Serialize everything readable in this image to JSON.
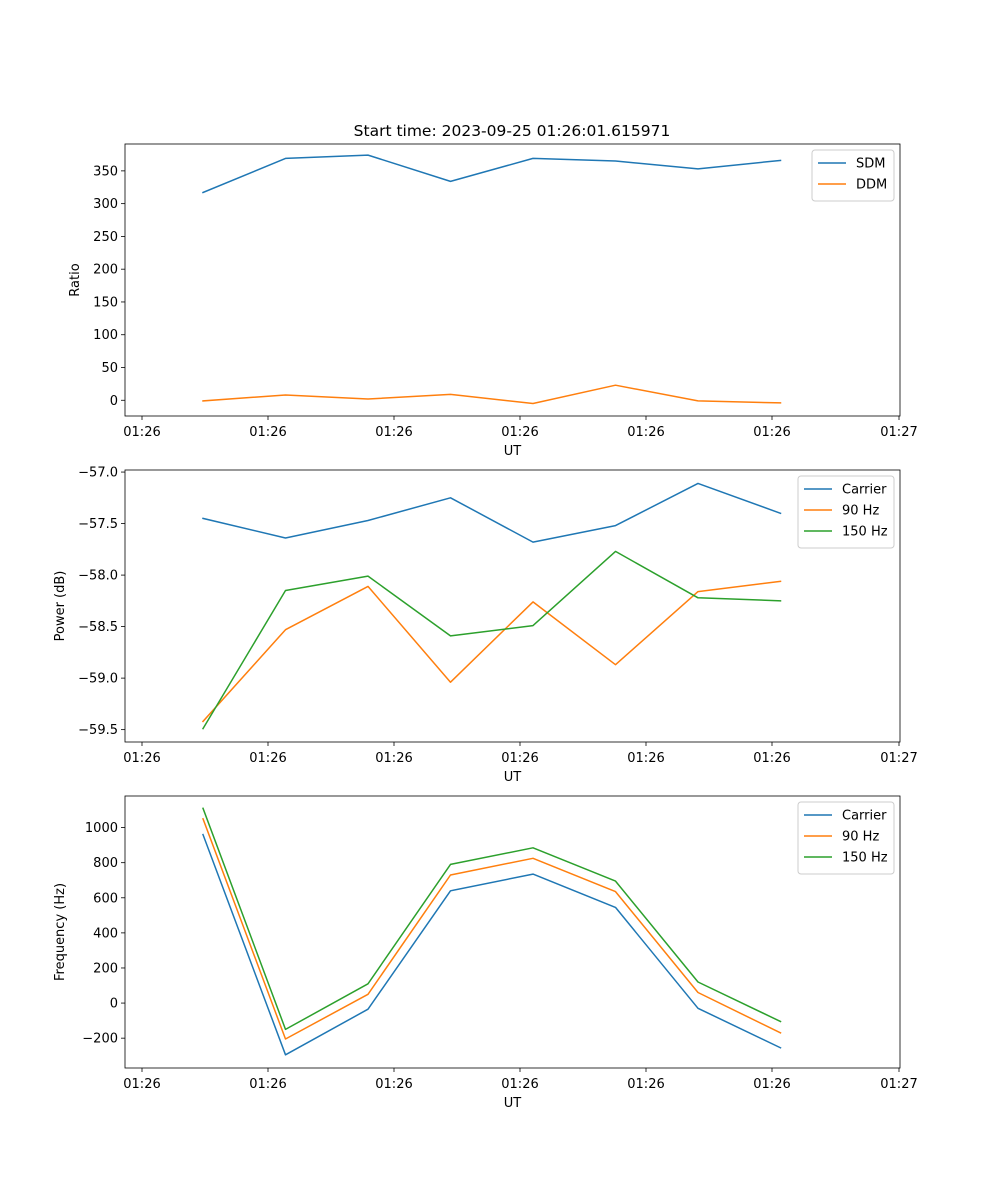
{
  "figure_title": "Start time: 2023-09-25 01:26:01.615971",
  "colors": {
    "blue": "#1f77b4",
    "orange": "#ff7f0e",
    "green": "#2ca02c"
  },
  "chart_data": [
    {
      "type": "line",
      "xlabel": "UT",
      "ylabel": "Ratio",
      "x_tick_labels": [
        "01:26",
        "01:26",
        "01:26",
        "01:26",
        "01:26",
        "01:26",
        "01:26"
      ],
      "ylim": [
        -24,
        391
      ],
      "yticks": [
        0,
        50,
        100,
        150,
        200,
        250,
        300,
        350
      ],
      "legend_position": "top-right",
      "series": [
        {
          "name": "SDM",
          "color": "blue",
          "values": [
            317,
            369,
            374,
            334,
            369,
            365,
            353,
            366
          ]
        },
        {
          "name": "DDM",
          "color": "orange",
          "values": [
            -1,
            8,
            2,
            9,
            -5,
            23,
            -1,
            -4
          ]
        }
      ]
    },
    {
      "type": "line",
      "xlabel": "UT",
      "ylabel": "Power (dB)",
      "x_tick_labels": [
        "01:26",
        "01:26",
        "01:26",
        "01:26",
        "01:26",
        "01:26",
        "01:26"
      ],
      "ylim": [
        -59.62,
        -56.98
      ],
      "yticks": [
        -59.5,
        -59.0,
        -58.5,
        -58.0,
        -57.5,
        -57.0
      ],
      "legend_position": "top-right",
      "series": [
        {
          "name": "Carrier",
          "color": "blue",
          "values": [
            -57.45,
            -57.64,
            -57.47,
            -57.25,
            -57.68,
            -57.52,
            -57.11,
            -57.4
          ]
        },
        {
          "name": "90 Hz",
          "color": "orange",
          "values": [
            -59.42,
            -58.53,
            -58.11,
            -59.04,
            -58.26,
            -58.87,
            -58.16,
            -58.06
          ]
        },
        {
          "name": "150 Hz",
          "color": "green",
          "values": [
            -59.49,
            -58.15,
            -58.01,
            -58.59,
            -58.49,
            -57.77,
            -58.22,
            -58.25
          ]
        }
      ]
    },
    {
      "type": "line",
      "xlabel": "UT",
      "ylabel": "Frequency (Hz)",
      "x_tick_labels": [
        "01:26",
        "01:26",
        "01:26",
        "01:26",
        "01:26",
        "01:26",
        "01:26"
      ],
      "ylim": [
        -370,
        1180
      ],
      "yticks": [
        -200,
        0,
        200,
        400,
        600,
        800,
        1000
      ],
      "legend_position": "top-right",
      "series": [
        {
          "name": "Carrier",
          "color": "blue",
          "values": [
            960,
            -295,
            -35,
            640,
            735,
            545,
            -30,
            -255
          ]
        },
        {
          "name": "90 Hz",
          "color": "orange",
          "values": [
            1050,
            -205,
            50,
            730,
            825,
            635,
            60,
            -170
          ]
        },
        {
          "name": "150 Hz",
          "color": "green",
          "values": [
            1110,
            -150,
            110,
            790,
            885,
            695,
            120,
            -105
          ]
        }
      ]
    }
  ],
  "x_end_tick_label": "01:27"
}
